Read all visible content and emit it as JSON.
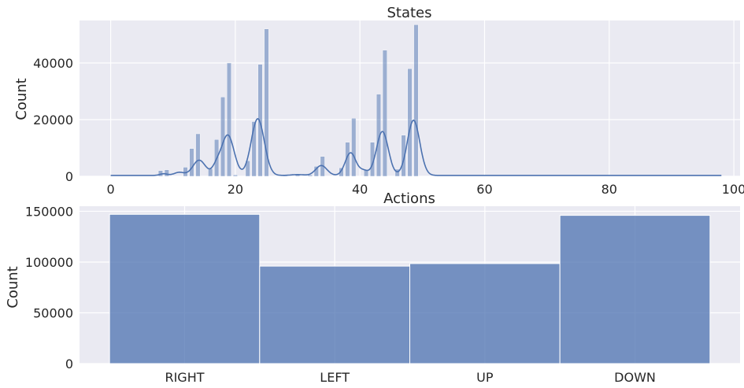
{
  "chart_data": [
    {
      "type": "histogram",
      "title": "States",
      "xlabel": "",
      "ylabel": "Count",
      "xlim": [
        -5,
        101
      ],
      "ylim": [
        0,
        55000
      ],
      "xticks": [
        0,
        20,
        40,
        60,
        80,
        100
      ],
      "yticks": [
        0,
        20000,
        40000
      ],
      "grid": true,
      "bar_color": "#4c72b0",
      "bins": [
        {
          "x": 0,
          "count": 100
        },
        {
          "x": 8,
          "count": 2000
        },
        {
          "x": 9,
          "count": 2300
        },
        {
          "x": 12,
          "count": 3200
        },
        {
          "x": 13,
          "count": 9800
        },
        {
          "x": 14,
          "count": 15000
        },
        {
          "x": 16,
          "count": 2700
        },
        {
          "x": 17,
          "count": 13000
        },
        {
          "x": 18,
          "count": 28000
        },
        {
          "x": 19,
          "count": 40000
        },
        {
          "x": 20,
          "count": 500
        },
        {
          "x": 22,
          "count": 5500
        },
        {
          "x": 23,
          "count": 19300
        },
        {
          "x": 24,
          "count": 39500
        },
        {
          "x": 25,
          "count": 52000
        },
        {
          "x": 28,
          "count": 200
        },
        {
          "x": 30,
          "count": 900
        },
        {
          "x": 32,
          "count": 500
        },
        {
          "x": 33,
          "count": 3500
        },
        {
          "x": 34,
          "count": 7000
        },
        {
          "x": 37,
          "count": 3000
        },
        {
          "x": 38,
          "count": 12000
        },
        {
          "x": 39,
          "count": 20500
        },
        {
          "x": 41,
          "count": 2300
        },
        {
          "x": 42,
          "count": 12000
        },
        {
          "x": 43,
          "count": 29000
        },
        {
          "x": 44,
          "count": 44500
        },
        {
          "x": 46,
          "count": 2500
        },
        {
          "x": 47,
          "count": 14500
        },
        {
          "x": 48,
          "count": 38000
        },
        {
          "x": 49,
          "count": 53500
        }
      ],
      "kde_peaks": [
        {
          "x": 8.5,
          "height": 600,
          "width": 0.6
        },
        {
          "x": 11,
          "height": 1100,
          "width": 0.8
        },
        {
          "x": 14.2,
          "height": 5400,
          "width": 1.0
        },
        {
          "x": 17,
          "height": 3000,
          "width": 0.7
        },
        {
          "x": 18.8,
          "height": 14200,
          "width": 1.0
        },
        {
          "x": 23.6,
          "height": 20000,
          "width": 1.05
        },
        {
          "x": 30,
          "height": 300,
          "width": 1.0
        },
        {
          "x": 33.8,
          "height": 3500,
          "width": 0.9
        },
        {
          "x": 38.5,
          "height": 8000,
          "width": 0.85
        },
        {
          "x": 40.6,
          "height": 1600,
          "width": 0.7
        },
        {
          "x": 43.6,
          "height": 15500,
          "width": 0.95
        },
        {
          "x": 48.6,
          "height": 19500,
          "width": 1.0
        }
      ]
    },
    {
      "type": "bar",
      "title": "Actions",
      "xlabel": "",
      "ylabel": "Count",
      "categories": [
        "RIGHT",
        "LEFT",
        "UP",
        "DOWN"
      ],
      "values": [
        147000,
        96000,
        98500,
        146000
      ],
      "ylim": [
        0,
        155000
      ],
      "yticks": [
        0,
        50000,
        100000,
        150000
      ],
      "grid": true,
      "bar_color": "#4c72b0"
    }
  ]
}
